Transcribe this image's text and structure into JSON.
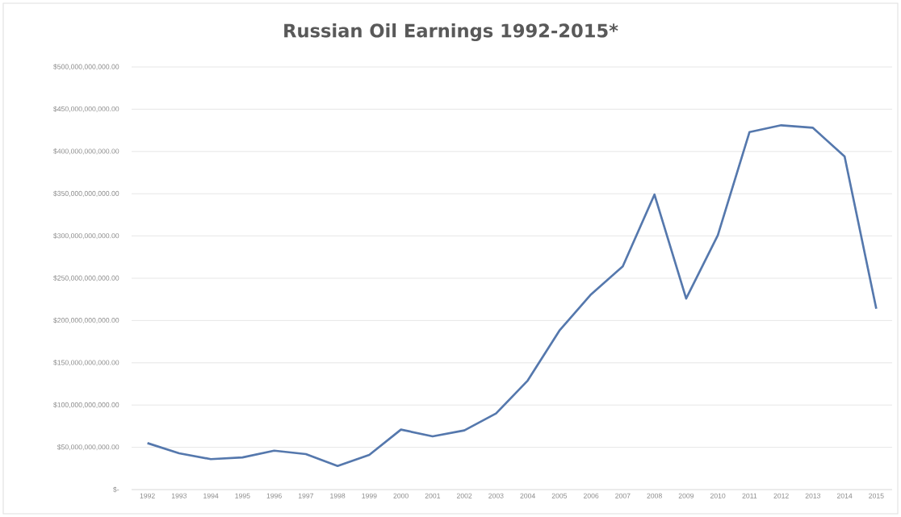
{
  "chart_data": {
    "type": "line",
    "title": "Russian Oil Earnings 1992-2015*",
    "categories": [
      "1992",
      "1993",
      "1994",
      "1995",
      "1996",
      "1997",
      "1998",
      "1999",
      "2000",
      "2001",
      "2002",
      "2003",
      "2004",
      "2005",
      "2006",
      "2007",
      "2008",
      "2009",
      "2010",
      "2011",
      "2012",
      "2013",
      "2014",
      "2015"
    ],
    "series": [
      {
        "color": "#5578ad",
        "values": [
          55000000000,
          43000000000,
          36000000000,
          38000000000,
          46000000000,
          42000000000,
          28000000000,
          41000000000,
          71000000000,
          63000000000,
          70000000000,
          90000000000,
          129000000000,
          188000000000,
          231000000000,
          264000000000,
          349000000000,
          226000000000,
          301000000000,
          423000000000,
          431000000000,
          428000000000,
          394000000000,
          214000000000
        ]
      }
    ],
    "ylim": [
      0,
      500000000000
    ],
    "yticks": [
      {
        "value": 0,
        "label": "$-"
      },
      {
        "value": 50000000000,
        "label": "$50,000,000,000.00"
      },
      {
        "value": 100000000000,
        "label": "$100,000,000,000.00"
      },
      {
        "value": 150000000000,
        "label": "$150,000,000,000.00"
      },
      {
        "value": 200000000000,
        "label": "$200,000,000,000.00"
      },
      {
        "value": 250000000000,
        "label": "$250,000,000,000.00"
      },
      {
        "value": 300000000000,
        "label": "$300,000,000,000.00"
      },
      {
        "value": 350000000000,
        "label": "$350,000,000,000.00"
      },
      {
        "value": 400000000000,
        "label": "$400,000,000,000.00"
      },
      {
        "value": 450000000000,
        "label": "$450,000,000,000.00"
      },
      {
        "value": 500000000000,
        "label": "$500,000,000,000.00"
      }
    ],
    "grid": "y",
    "marker": "none",
    "line_style": "solid"
  }
}
